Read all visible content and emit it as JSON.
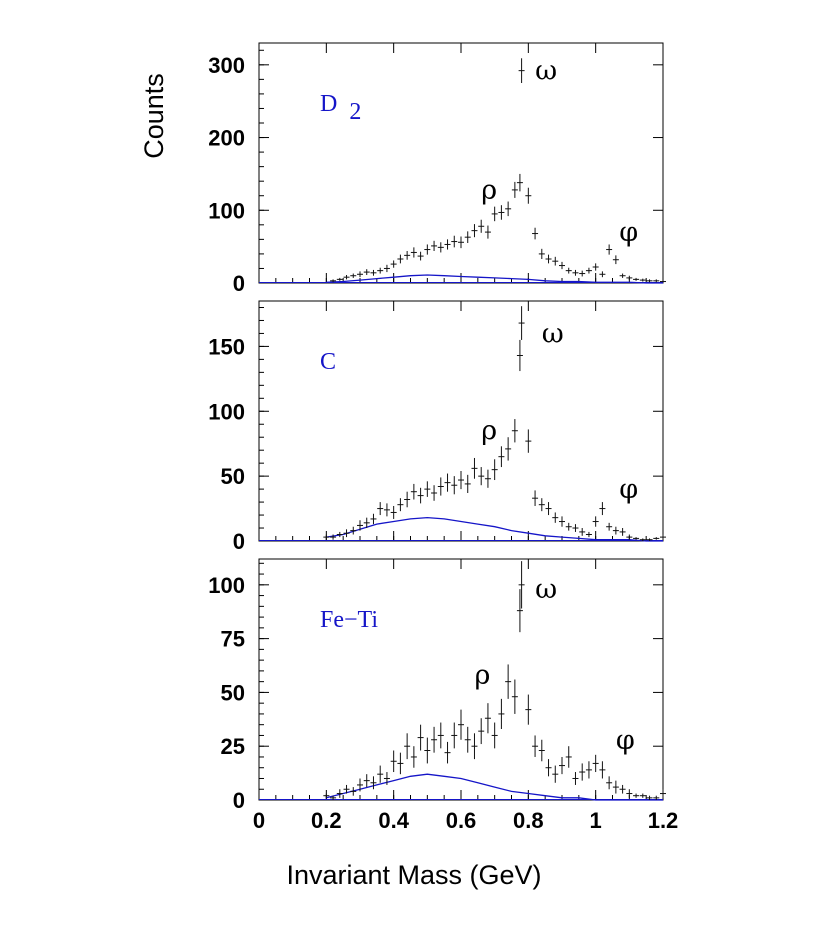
{
  "chart_data": {
    "type": "histogram",
    "xlabel": "Invariant Mass (GeV)",
    "ylabel": "Counts",
    "xlim": [
      0,
      1.2
    ],
    "xticks": [
      "0",
      "0.2",
      "0.4",
      "0.6",
      "0.8",
      "1",
      "1.2"
    ],
    "grid": false,
    "panels": [
      {
        "label": "D 2",
        "label_main": "D",
        "label_sub": "2",
        "ylim": [
          0,
          330
        ],
        "yticks": [
          "0",
          "100",
          "200",
          "300"
        ],
        "annotations": [
          {
            "text": "ω",
            "x": 0.82,
            "y": 292
          },
          {
            "text": "ρ",
            "x": 0.66,
            "y": 128
          },
          {
            "text": "φ",
            "x": 1.07,
            "y": 70
          }
        ],
        "data": {
          "x": [
            0.22,
            0.24,
            0.26,
            0.28,
            0.3,
            0.32,
            0.34,
            0.36,
            0.38,
            0.4,
            0.42,
            0.44,
            0.46,
            0.48,
            0.5,
            0.52,
            0.54,
            0.56,
            0.58,
            0.6,
            0.62,
            0.64,
            0.66,
            0.68,
            0.7,
            0.72,
            0.74,
            0.76,
            0.775,
            0.78,
            0.8,
            0.82,
            0.84,
            0.86,
            0.88,
            0.9,
            0.92,
            0.94,
            0.96,
            0.98,
            1.0,
            1.02,
            1.04,
            1.06,
            1.08,
            1.1,
            1.12,
            1.14,
            1.16,
            1.18,
            1.2
          ],
          "y": [
            3,
            5,
            8,
            10,
            12,
            15,
            14,
            17,
            20,
            26,
            33,
            38,
            42,
            37,
            46,
            51,
            49,
            53,
            57,
            56,
            63,
            72,
            78,
            70,
            95,
            97,
            102,
            128,
            138,
            292,
            120,
            68,
            40,
            33,
            30,
            24,
            17,
            14,
            13,
            17,
            22,
            12,
            46,
            32,
            10,
            7,
            5,
            4,
            3,
            3,
            2
          ],
          "err": [
            2,
            2,
            3,
            3,
            4,
            4,
            4,
            4,
            5,
            5,
            6,
            6,
            7,
            6,
            7,
            7,
            7,
            7,
            8,
            8,
            8,
            9,
            9,
            9,
            10,
            10,
            10,
            11,
            12,
            17,
            11,
            8,
            7,
            6,
            6,
            5,
            4,
            4,
            4,
            4,
            5,
            4,
            7,
            6,
            3,
            3,
            2,
            2,
            2,
            2,
            1
          ],
          "background_x": [
            0.2,
            0.25,
            0.3,
            0.35,
            0.4,
            0.45,
            0.5,
            0.55,
            0.6,
            0.65,
            0.7,
            0.75,
            0.8,
            0.85,
            0.9,
            0.95,
            1.0,
            1.05,
            1.1,
            1.15,
            1.2
          ],
          "background_y": [
            1,
            2,
            4,
            6,
            8,
            10,
            11,
            10,
            9,
            8,
            7,
            6,
            5,
            3,
            2,
            2,
            1,
            1,
            1,
            0,
            0
          ]
        }
      },
      {
        "label": "C",
        "label_main": "C",
        "label_sub": "",
        "ylim": [
          0,
          185
        ],
        "yticks": [
          "0",
          "50",
          "100",
          "150"
        ],
        "annotations": [
          {
            "text": "ω",
            "x": 0.84,
            "y": 160
          },
          {
            "text": "ρ",
            "x": 0.66,
            "y": 85
          },
          {
            "text": "φ",
            "x": 1.07,
            "y": 40
          }
        ],
        "data": {
          "x": [
            0.2,
            0.22,
            0.24,
            0.26,
            0.28,
            0.3,
            0.32,
            0.34,
            0.36,
            0.38,
            0.4,
            0.42,
            0.44,
            0.46,
            0.48,
            0.5,
            0.52,
            0.54,
            0.56,
            0.58,
            0.6,
            0.62,
            0.64,
            0.66,
            0.68,
            0.7,
            0.72,
            0.74,
            0.76,
            0.775,
            0.78,
            0.8,
            0.82,
            0.84,
            0.86,
            0.88,
            0.9,
            0.92,
            0.94,
            0.96,
            0.98,
            1.0,
            1.02,
            1.04,
            1.06,
            1.08,
            1.1,
            1.12,
            1.14,
            1.16,
            1.18,
            1.2
          ],
          "y": [
            3,
            3,
            5,
            6,
            8,
            12,
            14,
            17,
            25,
            24,
            22,
            28,
            32,
            38,
            35,
            40,
            37,
            42,
            45,
            43,
            47,
            44,
            56,
            50,
            48,
            55,
            65,
            71,
            85,
            143,
            168,
            77,
            33,
            28,
            25,
            18,
            15,
            11,
            10,
            7,
            5,
            15,
            25,
            11,
            8,
            7,
            3,
            2,
            1,
            1,
            2,
            3
          ],
          "err": [
            2,
            2,
            2,
            3,
            3,
            4,
            4,
            4,
            5,
            5,
            5,
            5,
            6,
            6,
            6,
            6,
            6,
            7,
            7,
            7,
            7,
            7,
            8,
            7,
            7,
            8,
            8,
            9,
            9,
            12,
            13,
            9,
            6,
            5,
            5,
            4,
            4,
            3,
            3,
            3,
            2,
            4,
            5,
            3,
            3,
            3,
            2,
            1,
            1,
            1,
            1,
            2
          ],
          "background_x": [
            0.2,
            0.25,
            0.3,
            0.35,
            0.4,
            0.45,
            0.5,
            0.55,
            0.6,
            0.65,
            0.7,
            0.75,
            0.8,
            0.85,
            0.9,
            0.95,
            1.0,
            1.05,
            1.1,
            1.15,
            1.2
          ],
          "background_y": [
            3,
            5,
            9,
            13,
            15,
            17,
            18,
            17,
            15,
            13,
            11,
            8,
            6,
            4,
            3,
            2,
            1,
            1,
            1,
            0,
            0
          ]
        }
      },
      {
        "label": "Fe−Ti",
        "label_main": "Fe−Ti",
        "label_sub": "",
        "ylim": [
          0,
          112
        ],
        "yticks": [
          "0",
          "25",
          "50",
          "75",
          "100"
        ],
        "annotations": [
          {
            "text": "ω",
            "x": 0.82,
            "y": 98
          },
          {
            "text": "ρ",
            "x": 0.64,
            "y": 58
          },
          {
            "text": "φ",
            "x": 1.06,
            "y": 28
          }
        ],
        "data": {
          "x": [
            0.2,
            0.22,
            0.24,
            0.26,
            0.28,
            0.3,
            0.32,
            0.34,
            0.36,
            0.38,
            0.4,
            0.42,
            0.44,
            0.46,
            0.48,
            0.5,
            0.52,
            0.54,
            0.56,
            0.58,
            0.6,
            0.62,
            0.64,
            0.66,
            0.68,
            0.7,
            0.72,
            0.74,
            0.76,
            0.775,
            0.78,
            0.8,
            0.82,
            0.84,
            0.86,
            0.88,
            0.9,
            0.92,
            0.94,
            0.96,
            0.98,
            1.0,
            1.02,
            1.04,
            1.06,
            1.08,
            1.1,
            1.12,
            1.14,
            1.16,
            1.18,
            1.2
          ],
          "y": [
            2,
            1,
            3,
            5,
            4,
            7,
            9,
            8,
            12,
            10,
            18,
            17,
            25,
            20,
            29,
            23,
            28,
            30,
            22,
            30,
            35,
            28,
            25,
            32,
            38,
            30,
            40,
            55,
            48,
            88,
            100,
            42,
            25,
            23,
            15,
            12,
            16,
            20,
            10,
            13,
            14,
            17,
            14,
            8,
            6,
            5,
            3,
            2,
            2,
            1,
            1,
            3
          ],
          "err": [
            1,
            1,
            2,
            2,
            2,
            3,
            3,
            3,
            4,
            3,
            5,
            5,
            6,
            5,
            6,
            6,
            6,
            6,
            5,
            6,
            7,
            6,
            6,
            6,
            7,
            6,
            7,
            8,
            8,
            10,
            11,
            7,
            5,
            5,
            4,
            4,
            4,
            5,
            3,
            4,
            4,
            4,
            4,
            3,
            3,
            2,
            2,
            1,
            1,
            1,
            1,
            2
          ],
          "background_x": [
            0.2,
            0.25,
            0.3,
            0.35,
            0.4,
            0.45,
            0.5,
            0.55,
            0.6,
            0.65,
            0.7,
            0.75,
            0.8,
            0.85,
            0.9,
            0.95,
            1.0,
            1.05,
            1.1,
            1.15,
            1.2
          ],
          "background_y": [
            1,
            3,
            5,
            7,
            9,
            11,
            12,
            11,
            10,
            8,
            6,
            4,
            3,
            2,
            1,
            1,
            0,
            0,
            0,
            0,
            0
          ]
        }
      }
    ]
  },
  "colors": {
    "background_curve": "#1515c8",
    "data_points": "#111111",
    "panel_label": "#1515c8",
    "frame": "#000000"
  }
}
